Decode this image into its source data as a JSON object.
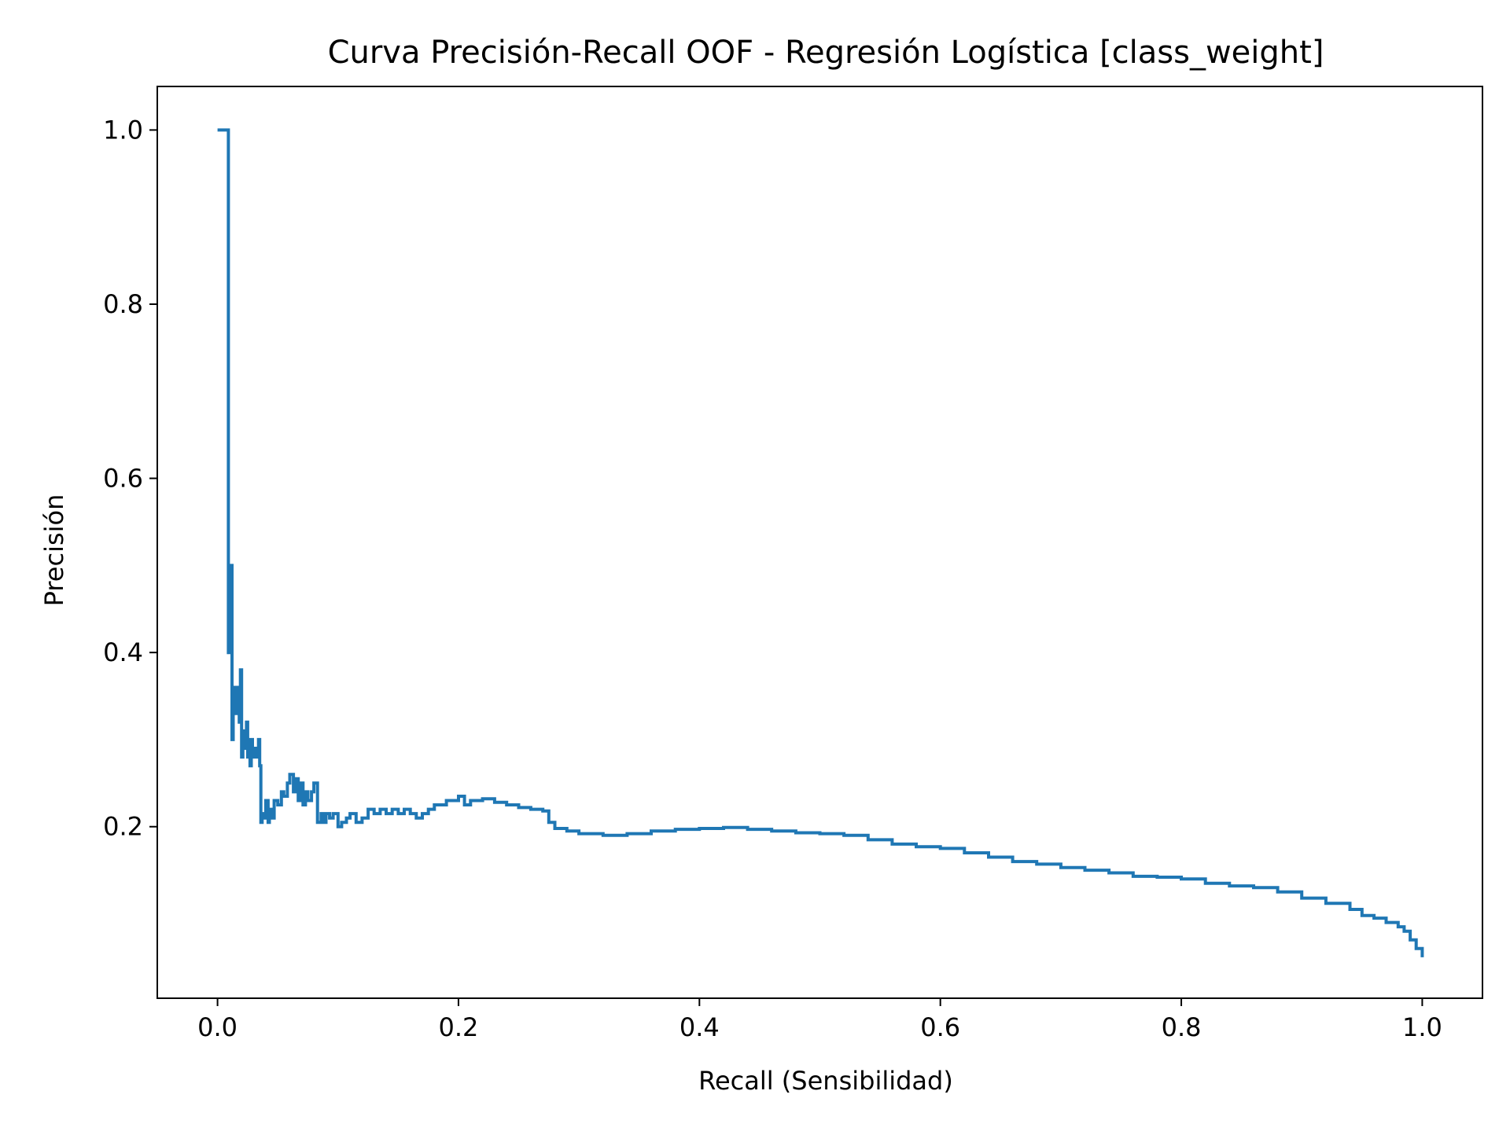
{
  "chart_data": {
    "type": "line",
    "title": "Curva Precisión-Recall OOF - Regresión Logística [class_weight]",
    "xlabel": "Recall (Sensibilidad)",
    "ylabel": "Precisión",
    "xlim": [
      -0.05,
      1.05
    ],
    "ylim": [
      0.003,
      1.05
    ],
    "xticks": [
      0.0,
      0.2,
      0.4,
      0.6,
      0.8,
      1.0
    ],
    "xtick_labels": [
      "0.0",
      "0.2",
      "0.4",
      "0.6",
      "0.8",
      "1.0"
    ],
    "yticks": [
      0.2,
      0.4,
      0.6,
      0.8,
      1.0
    ],
    "ytick_labels": [
      "0.2",
      "0.4",
      "0.6",
      "0.8",
      "1.0"
    ],
    "grid": false,
    "legend": "none",
    "series": [
      {
        "color": "#1f77b4",
        "x": [
          0.0,
          0.009,
          0.009,
          0.0095,
          0.01,
          0.011,
          0.012,
          0.013,
          0.014,
          0.015,
          0.017,
          0.018,
          0.019,
          0.02,
          0.021,
          0.022,
          0.024,
          0.025,
          0.026,
          0.027,
          0.028,
          0.029,
          0.03,
          0.031,
          0.032,
          0.033,
          0.034,
          0.035,
          0.036,
          0.037,
          0.038,
          0.04,
          0.042,
          0.043,
          0.045,
          0.047,
          0.05,
          0.053,
          0.055,
          0.058,
          0.06,
          0.063,
          0.065,
          0.067,
          0.069,
          0.071,
          0.073,
          0.075,
          0.078,
          0.08,
          0.083,
          0.086,
          0.088,
          0.09,
          0.093,
          0.096,
          0.1,
          0.103,
          0.107,
          0.11,
          0.115,
          0.12,
          0.125,
          0.13,
          0.135,
          0.14,
          0.145,
          0.15,
          0.155,
          0.16,
          0.165,
          0.17,
          0.175,
          0.18,
          0.19,
          0.2,
          0.205,
          0.21,
          0.22,
          0.23,
          0.24,
          0.25,
          0.26,
          0.27,
          0.275,
          0.28,
          0.29,
          0.3,
          0.32,
          0.34,
          0.36,
          0.38,
          0.4,
          0.42,
          0.44,
          0.46,
          0.48,
          0.5,
          0.52,
          0.54,
          0.56,
          0.58,
          0.6,
          0.62,
          0.64,
          0.66,
          0.68,
          0.7,
          0.72,
          0.74,
          0.76,
          0.78,
          0.8,
          0.82,
          0.84,
          0.86,
          0.88,
          0.9,
          0.92,
          0.94,
          0.95,
          0.96,
          0.97,
          0.98,
          0.985,
          0.99,
          0.995,
          1.0
        ],
        "y": [
          1.0,
          1.0,
          0.4,
          0.48,
          0.4,
          0.5,
          0.3,
          0.35,
          0.36,
          0.33,
          0.36,
          0.32,
          0.38,
          0.28,
          0.31,
          0.29,
          0.32,
          0.28,
          0.3,
          0.27,
          0.3,
          0.28,
          0.29,
          0.28,
          0.29,
          0.28,
          0.3,
          0.27,
          0.205,
          0.215,
          0.21,
          0.23,
          0.205,
          0.22,
          0.21,
          0.23,
          0.225,
          0.24,
          0.235,
          0.25,
          0.26,
          0.24,
          0.255,
          0.23,
          0.25,
          0.225,
          0.24,
          0.23,
          0.24,
          0.25,
          0.205,
          0.215,
          0.205,
          0.215,
          0.21,
          0.215,
          0.2,
          0.205,
          0.21,
          0.215,
          0.205,
          0.21,
          0.22,
          0.215,
          0.22,
          0.215,
          0.22,
          0.215,
          0.22,
          0.215,
          0.21,
          0.215,
          0.22,
          0.225,
          0.23,
          0.235,
          0.225,
          0.23,
          0.232,
          0.228,
          0.225,
          0.222,
          0.22,
          0.218,
          0.205,
          0.198,
          0.195,
          0.192,
          0.19,
          0.192,
          0.195,
          0.197,
          0.198,
          0.199,
          0.197,
          0.195,
          0.193,
          0.192,
          0.19,
          0.185,
          0.18,
          0.177,
          0.175,
          0.17,
          0.165,
          0.16,
          0.157,
          0.153,
          0.15,
          0.147,
          0.143,
          0.142,
          0.14,
          0.135,
          0.132,
          0.13,
          0.125,
          0.118,
          0.112,
          0.105,
          0.098,
          0.095,
          0.09,
          0.085,
          0.08,
          0.07,
          0.06,
          0.05
        ]
      }
    ]
  }
}
